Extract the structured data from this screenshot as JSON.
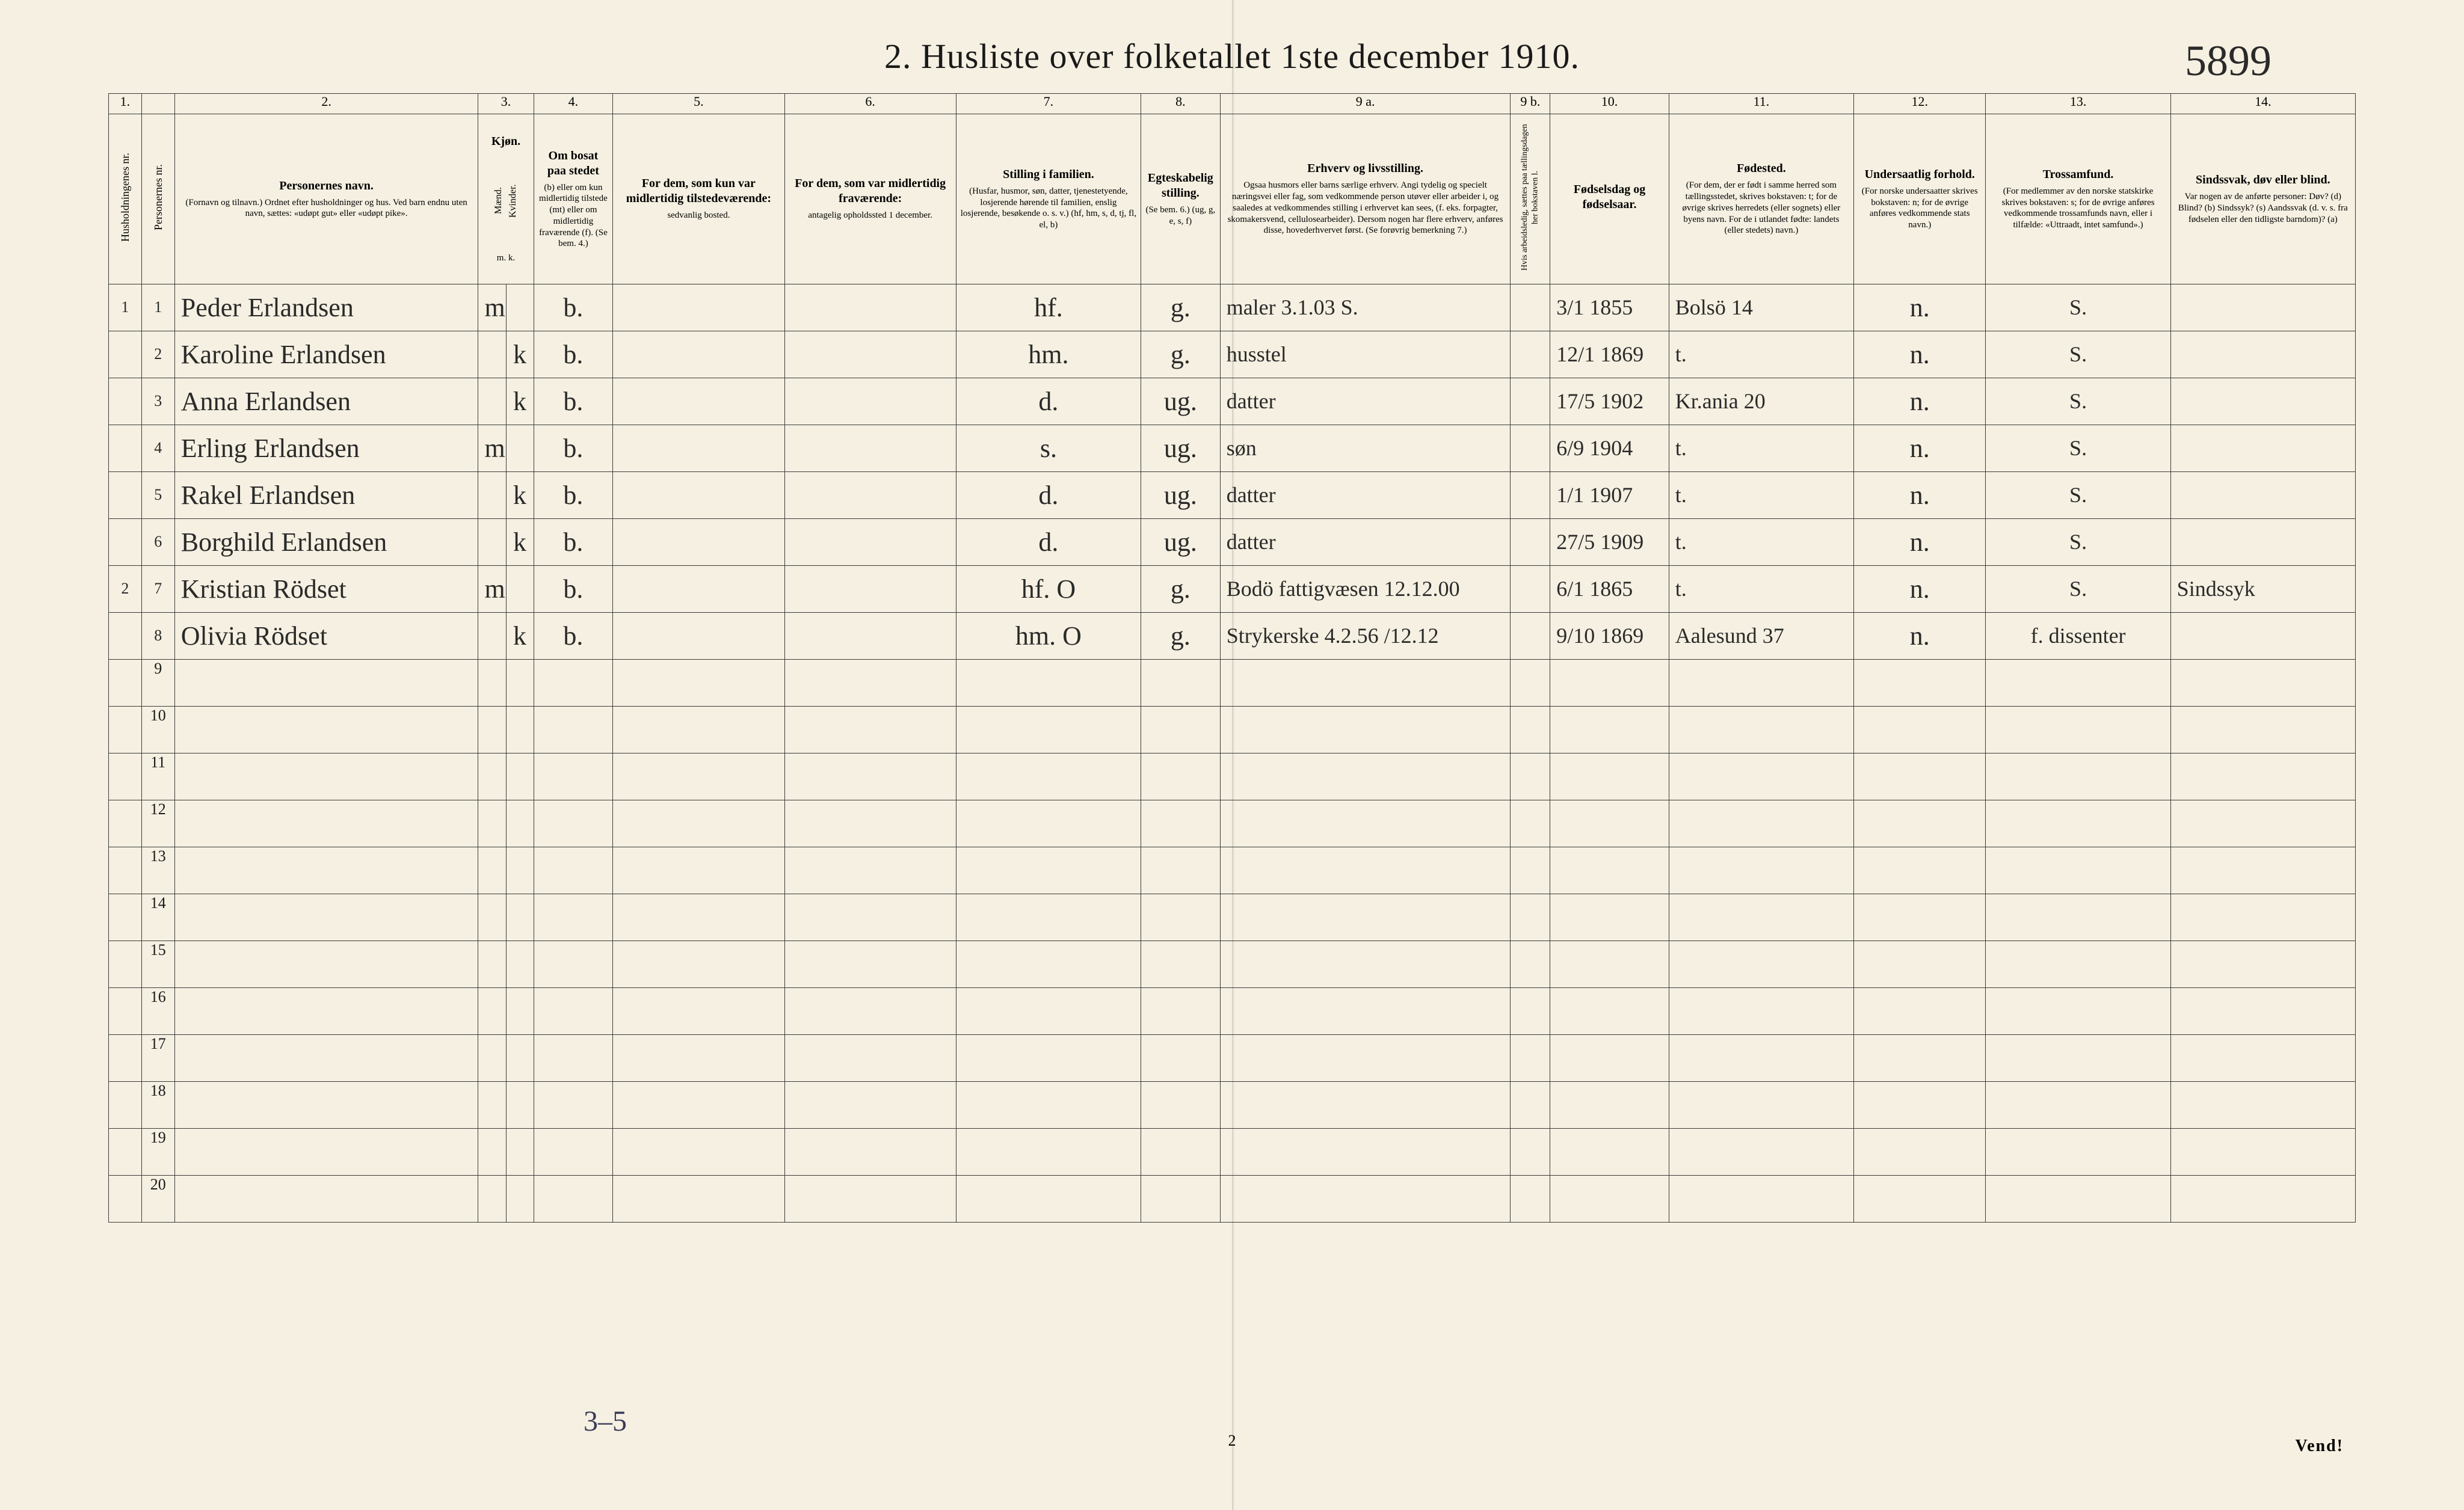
{
  "handwritten_top_right": "5899",
  "title": "2.  Husliste over folketallet 1ste december 1910.",
  "columns": {
    "nums": [
      "1.",
      "",
      "2.",
      "3.",
      "",
      "4.",
      "5.",
      "6.",
      "7.",
      "8.",
      "9 a.",
      "9 b.",
      "10.",
      "11.",
      "12.",
      "13.",
      "14."
    ],
    "h1_vert": "Husholdningenes nr.",
    "h1b_vert": "Personernes nr.",
    "h2_main": "Personernes navn.",
    "h2_sub": "(Fornavn og tilnavn.)\nOrdnet efter husholdninger og hus.\nVed barn endnu uten navn, sættes: «udøpt gut» eller «udøpt pike».",
    "h3_main": "Kjøn.",
    "h3_sub_m": "Mænd.",
    "h3_sub_k": "Kvinder.",
    "h3_mk": "m.  k.",
    "h4_main": "Om bosat paa stedet",
    "h4_sub": "(b) eller om kun midlertidig tilstede (mt) eller om midlertidig fraværende (f). (Se bem. 4.)",
    "h5_main": "For dem, som kun var midlertidig tilstedeværende:",
    "h5_sub": "sedvanlig bosted.",
    "h6_main": "For dem, som var midlertidig fraværende:",
    "h6_sub": "antagelig opholdssted 1 december.",
    "h7_main": "Stilling i familien.",
    "h7_sub": "(Husfar, husmor, søn, datter, tjenestetyende, losjerende hørende til familien, enslig losjerende, besøkende o. s. v.)\n(hf, hm, s, d, tj, fl, el, b)",
    "h8_main": "Egteskabelig stilling.",
    "h8_sub": "(Se bem. 6.)\n(ug, g, e, s, f)",
    "h9a_main": "Erhverv og livsstilling.",
    "h9a_sub": "Ogsaa husmors eller barns særlige erhverv. Angi tydelig og specielt næringsvei eller fag, som vedkommende person utøver eller arbeider i, og saaledes at vedkommendes stilling i erhvervet kan sees, (f. eks. forpagter, skomakersvend, cellulosearbeider). Dersom nogen har flere erhverv, anføres disse, hovederhvervet først. (Se forøvrig bemerkning 7.)",
    "h9b_vert": "Hvis arbeidsledig, sættes paa tællingsdagen her bokstaven l.",
    "h10_main": "Fødselsdag og fødselsaar.",
    "h11_main": "Fødested.",
    "h11_sub": "(For dem, der er født i samme herred som tællingsstedet, skrives bokstaven: t; for de øvrige skrives herredets (eller sognets) eller byens navn. For de i utlandet fødte: landets (eller stedets) navn.)",
    "h12_main": "Undersaatlig forhold.",
    "h12_sub": "(For norske undersaatter skrives bokstaven: n; for de øvrige anføres vedkommende stats navn.)",
    "h13_main": "Trossamfund.",
    "h13_sub": "(For medlemmer av den norske statskirke skrives bokstaven: s; for de øvrige anføres vedkommende trossamfunds navn, eller i tilfælde: «Uttraadt, intet samfund».)",
    "h14_main": "Sindssvak, døv eller blind.",
    "h14_sub": "Var nogen av de anførte personer:\nDøv?        (d)\nBlind?      (b)\nSindssyk?   (s)\nAandssvak (d. v. s. fra fødselen eller den tidligste barndom)?  (a)"
  },
  "rows": [
    {
      "hn": "1",
      "pn": "1",
      "name": "Peder Erlandsen",
      "m": "m",
      "k": "",
      "bos": "b.",
      "c5": "",
      "c6": "",
      "fam": "hf.",
      "egt": "g.",
      "erhv": "maler 3.1.03 S.",
      "c9b": "",
      "dob": "3/1 1855",
      "fsted": "Bolsö 14",
      "und": "n.",
      "tro": "S.",
      "c14": ""
    },
    {
      "hn": "",
      "pn": "2",
      "name": "Karoline Erlandsen",
      "m": "",
      "k": "k",
      "bos": "b.",
      "c5": "",
      "c6": "",
      "fam": "hm.",
      "egt": "g.",
      "erhv": "husstel",
      "c9b": "",
      "dob": "12/1 1869",
      "fsted": "t.",
      "und": "n.",
      "tro": "S.",
      "c14": ""
    },
    {
      "hn": "",
      "pn": "3",
      "name": "Anna Erlandsen",
      "m": "",
      "k": "k",
      "bos": "b.",
      "c5": "",
      "c6": "",
      "fam": "d.",
      "egt": "ug.",
      "erhv": "datter",
      "c9b": "",
      "dob": "17/5 1902",
      "fsted": "Kr.ania 20",
      "und": "n.",
      "tro": "S.",
      "c14": ""
    },
    {
      "hn": "",
      "pn": "4",
      "name": "Erling Erlandsen",
      "m": "m",
      "k": "",
      "bos": "b.",
      "c5": "",
      "c6": "",
      "fam": "s.",
      "egt": "ug.",
      "erhv": "søn",
      "c9b": "",
      "dob": "6/9 1904",
      "fsted": "t.",
      "und": "n.",
      "tro": "S.",
      "c14": ""
    },
    {
      "hn": "",
      "pn": "5",
      "name": "Rakel Erlandsen",
      "m": "",
      "k": "k",
      "bos": "b.",
      "c5": "",
      "c6": "",
      "fam": "d.",
      "egt": "ug.",
      "erhv": "datter",
      "c9b": "",
      "dob": "1/1 1907",
      "fsted": "t.",
      "und": "n.",
      "tro": "S.",
      "c14": ""
    },
    {
      "hn": "",
      "pn": "6",
      "name": "Borghild Erlandsen",
      "m": "",
      "k": "k",
      "bos": "b.",
      "c5": "",
      "c6": "",
      "fam": "d.",
      "egt": "ug.",
      "erhv": "datter",
      "c9b": "",
      "dob": "27/5 1909",
      "fsted": "t.",
      "und": "n.",
      "tro": "S.",
      "c14": ""
    },
    {
      "hn": "2",
      "pn": "7",
      "name": "Kristian Rödset",
      "m": "m",
      "k": "",
      "bos": "b.",
      "c5": "",
      "c6": "",
      "fam": "hf. O",
      "egt": "g.",
      "erhv": "Bodö fattigvæsen 12.12.00",
      "erhv_red": true,
      "c9b": "",
      "dob": "6/1 1865",
      "fsted": "t.",
      "und": "n.",
      "tro": "S.",
      "c14": "Sindssyk"
    },
    {
      "hn": "",
      "pn": "8",
      "name": "Olivia Rödset",
      "m": "",
      "k": "k",
      "bos": "b.",
      "c5": "",
      "c6": "",
      "fam": "hm. O",
      "egt": "g.",
      "erhv": "Strykerske 4.2.56 /12.12",
      "c9b": "",
      "dob": "9/10 1869",
      "fsted": "Aalesund 37",
      "und": "n.",
      "tro": "f. dissenter",
      "c14": ""
    }
  ],
  "empty_row_nums": [
    "9",
    "10",
    "11",
    "12",
    "13",
    "14",
    "15",
    "16",
    "17",
    "18",
    "19",
    "20"
  ],
  "footer_handwritten": "3–5",
  "page_number": "2",
  "vend": "Vend!"
}
